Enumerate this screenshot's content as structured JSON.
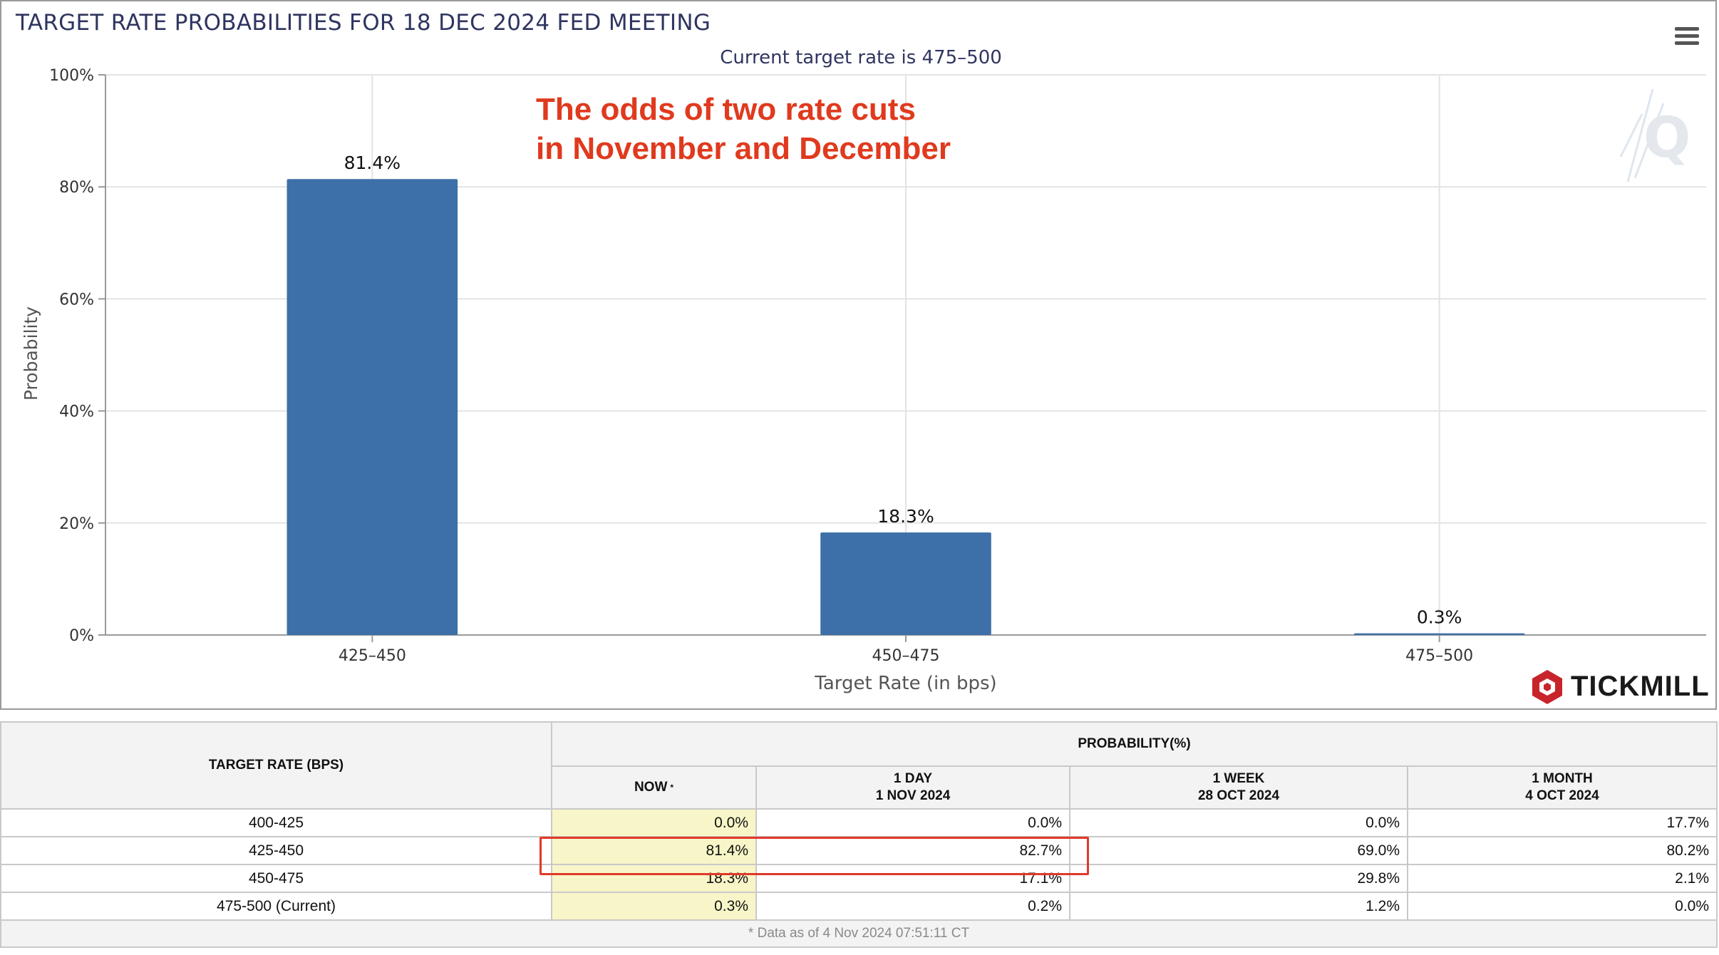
{
  "chart_data": {
    "type": "bar",
    "title": "TARGET RATE PROBABILITIES FOR 18 DEC 2024 FED MEETING",
    "subtitle": "Current target rate is 475–500",
    "categories": [
      "425–450",
      "450–475",
      "475–500"
    ],
    "values": [
      81.4,
      18.3,
      0.3
    ],
    "data_labels": [
      "81.4%",
      "18.3%",
      "0.3%"
    ],
    "xlabel": "Target Rate (in bps)",
    "ylabel": "Probability",
    "ylim": [
      0,
      100
    ],
    "yticks": [
      0,
      20,
      40,
      60,
      80,
      100
    ],
    "ytick_labels": [
      "0%",
      "20%",
      "40%",
      "60%",
      "80%",
      "100%"
    ],
    "grid": true,
    "bar_color": "#3d6fa8",
    "annotation": [
      "The odds of two rate cuts",
      "in November and December"
    ]
  },
  "annotation_color": "#e03a1e",
  "brand": {
    "name": "TICKMILL",
    "color": "#c8242b"
  },
  "menu_icon": "hamburger-menu-icon",
  "table": {
    "header_target": "TARGET RATE (BPS)",
    "header_prob": "PROBABILITY(%)",
    "col_now": "NOW",
    "col_now_mark": "*",
    "col_day": [
      "1 DAY",
      "1 NOV 2024"
    ],
    "col_week": [
      "1 WEEK",
      "28 OCT 2024"
    ],
    "col_month": [
      "1 MONTH",
      "4 OCT 2024"
    ],
    "rows": [
      {
        "rate": "400-425",
        "now": "0.0%",
        "day": "0.0%",
        "week": "0.0%",
        "month": "17.7%"
      },
      {
        "rate": "425-450",
        "now": "81.4%",
        "day": "82.7%",
        "week": "69.0%",
        "month": "80.2%"
      },
      {
        "rate": "450-475",
        "now": "18.3%",
        "day": "17.1%",
        "week": "29.8%",
        "month": "2.1%"
      },
      {
        "rate": "475-500 (Current)",
        "now": "0.3%",
        "day": "0.2%",
        "week": "1.2%",
        "month": "0.0%"
      }
    ],
    "footnote": "* Data as of 4 Nov 2024 07:51:11 CT"
  }
}
